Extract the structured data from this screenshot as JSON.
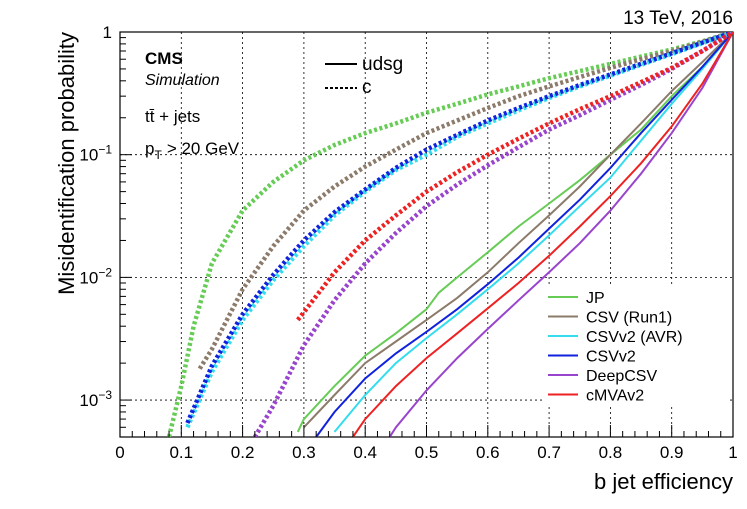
{
  "chart_data": {
    "type": "line",
    "energy_label": "13 TeV, 2016",
    "xlabel": "b jet efficiency",
    "ylabel": "Misidentification probability",
    "xlim": [
      0,
      1
    ],
    "ylim": [
      0.0005,
      1
    ],
    "yscale": "log",
    "grid": true,
    "x_ticks": [
      {
        "value": 0,
        "label": "0"
      },
      {
        "value": 0.1,
        "label": "0.1"
      },
      {
        "value": 0.2,
        "label": "0.2"
      },
      {
        "value": 0.3,
        "label": "0.3"
      },
      {
        "value": 0.4,
        "label": "0.4"
      },
      {
        "value": 0.5,
        "label": "0.5"
      },
      {
        "value": 0.6,
        "label": "0.6"
      },
      {
        "value": 0.7,
        "label": "0.7"
      },
      {
        "value": 0.8,
        "label": "0.8"
      },
      {
        "value": 0.9,
        "label": "0.9"
      },
      {
        "value": 1,
        "label": "1"
      }
    ],
    "y_ticks": [
      {
        "value": 0.001,
        "base": "10",
        "exp": "−3"
      },
      {
        "value": 0.01,
        "base": "10",
        "exp": "−2"
      },
      {
        "value": 0.1,
        "base": "10",
        "exp": "−1"
      },
      {
        "value": 1,
        "label": "1"
      }
    ],
    "annotations": {
      "experiment": "CMS",
      "status": "Simulation",
      "process": "tt̄ + jets",
      "cut_prefix": "p",
      "cut_sub": "T",
      "cut_suffix": "> 20 GeV"
    },
    "style_legend": [
      {
        "label": "udsg",
        "dash": "solid"
      },
      {
        "label": "c",
        "dash": "dotted"
      }
    ],
    "series": [
      {
        "name": "JP",
        "color": "#66cc55",
        "udsg": [
          [
            0.29,
            0.00055
          ],
          [
            0.3,
            0.0007
          ],
          [
            0.35,
            0.0013
          ],
          [
            0.4,
            0.0023
          ],
          [
            0.45,
            0.0035
          ],
          [
            0.5,
            0.0055
          ],
          [
            0.52,
            0.0075
          ],
          [
            0.55,
            0.01
          ],
          [
            0.6,
            0.016
          ],
          [
            0.65,
            0.026
          ],
          [
            0.7,
            0.04
          ],
          [
            0.75,
            0.062
          ],
          [
            0.8,
            0.1
          ],
          [
            0.85,
            0.16
          ],
          [
            0.9,
            0.3
          ],
          [
            0.95,
            0.52
          ],
          [
            1.0,
            1.0
          ]
        ],
        "c": [
          [
            0.08,
            0.0005
          ],
          [
            0.1,
            0.0013
          ],
          [
            0.12,
            0.004
          ],
          [
            0.15,
            0.013
          ],
          [
            0.2,
            0.035
          ],
          [
            0.25,
            0.06
          ],
          [
            0.3,
            0.09
          ],
          [
            0.35,
            0.12
          ],
          [
            0.4,
            0.15
          ],
          [
            0.45,
            0.18
          ],
          [
            0.5,
            0.22
          ],
          [
            0.55,
            0.26
          ],
          [
            0.6,
            0.31
          ],
          [
            0.65,
            0.36
          ],
          [
            0.7,
            0.42
          ],
          [
            0.75,
            0.48
          ],
          [
            0.8,
            0.55
          ],
          [
            0.85,
            0.63
          ],
          [
            0.9,
            0.72
          ],
          [
            0.95,
            0.84
          ],
          [
            1.0,
            1.0
          ]
        ]
      },
      {
        "name": "CSV (Run1)",
        "color": "#8c7b6b",
        "udsg": [
          [
            0.3,
            0.0006
          ],
          [
            0.35,
            0.0011
          ],
          [
            0.4,
            0.002
          ],
          [
            0.45,
            0.003
          ],
          [
            0.5,
            0.0045
          ],
          [
            0.55,
            0.0068
          ],
          [
            0.6,
            0.011
          ],
          [
            0.65,
            0.019
          ],
          [
            0.7,
            0.032
          ],
          [
            0.75,
            0.055
          ],
          [
            0.8,
            0.1
          ],
          [
            0.85,
            0.18
          ],
          [
            0.9,
            0.33
          ],
          [
            0.95,
            0.57
          ],
          [
            1.0,
            1.0
          ]
        ],
        "c": [
          [
            0.13,
            0.0018
          ],
          [
            0.15,
            0.0026
          ],
          [
            0.2,
            0.008
          ],
          [
            0.25,
            0.018
          ],
          [
            0.3,
            0.035
          ],
          [
            0.35,
            0.055
          ],
          [
            0.4,
            0.08
          ],
          [
            0.45,
            0.11
          ],
          [
            0.5,
            0.15
          ],
          [
            0.55,
            0.19
          ],
          [
            0.6,
            0.24
          ],
          [
            0.65,
            0.3
          ],
          [
            0.7,
            0.36
          ],
          [
            0.75,
            0.43
          ],
          [
            0.8,
            0.51
          ],
          [
            0.85,
            0.6
          ],
          [
            0.9,
            0.7
          ],
          [
            0.95,
            0.83
          ],
          [
            1.0,
            1.0
          ]
        ]
      },
      {
        "name": "CSVv2 (AVR)",
        "color": "#33ddee",
        "udsg": [
          [
            0.35,
            0.00055
          ],
          [
            0.4,
            0.0011
          ],
          [
            0.45,
            0.002
          ],
          [
            0.5,
            0.0032
          ],
          [
            0.55,
            0.005
          ],
          [
            0.6,
            0.008
          ],
          [
            0.65,
            0.013
          ],
          [
            0.7,
            0.022
          ],
          [
            0.75,
            0.038
          ],
          [
            0.8,
            0.065
          ],
          [
            0.85,
            0.13
          ],
          [
            0.9,
            0.26
          ],
          [
            0.95,
            0.5
          ],
          [
            1.0,
            1.0
          ]
        ],
        "c": [
          [
            0.11,
            0.0006
          ],
          [
            0.15,
            0.0017
          ],
          [
            0.2,
            0.0045
          ],
          [
            0.25,
            0.0095
          ],
          [
            0.3,
            0.018
          ],
          [
            0.35,
            0.032
          ],
          [
            0.4,
            0.05
          ],
          [
            0.45,
            0.075
          ],
          [
            0.5,
            0.1
          ],
          [
            0.55,
            0.14
          ],
          [
            0.6,
            0.18
          ],
          [
            0.65,
            0.23
          ],
          [
            0.7,
            0.29
          ],
          [
            0.75,
            0.36
          ],
          [
            0.8,
            0.44
          ],
          [
            0.85,
            0.54
          ],
          [
            0.9,
            0.66
          ],
          [
            0.95,
            0.81
          ],
          [
            1.0,
            1.0
          ]
        ]
      },
      {
        "name": "CSVv2",
        "color": "#1122dd",
        "udsg": [
          [
            0.32,
            0.0005
          ],
          [
            0.35,
            0.0008
          ],
          [
            0.4,
            0.0015
          ],
          [
            0.45,
            0.0024
          ],
          [
            0.5,
            0.0036
          ],
          [
            0.55,
            0.0055
          ],
          [
            0.6,
            0.0088
          ],
          [
            0.65,
            0.0145
          ],
          [
            0.7,
            0.025
          ],
          [
            0.75,
            0.043
          ],
          [
            0.8,
            0.078
          ],
          [
            0.85,
            0.15
          ],
          [
            0.9,
            0.28
          ],
          [
            0.95,
            0.52
          ],
          [
            1.0,
            1.0
          ]
        ],
        "c": [
          [
            0.11,
            0.00065
          ],
          [
            0.15,
            0.0019
          ],
          [
            0.2,
            0.005
          ],
          [
            0.25,
            0.0105
          ],
          [
            0.3,
            0.02
          ],
          [
            0.35,
            0.034
          ],
          [
            0.4,
            0.052
          ],
          [
            0.45,
            0.078
          ],
          [
            0.5,
            0.11
          ],
          [
            0.55,
            0.145
          ],
          [
            0.6,
            0.19
          ],
          [
            0.65,
            0.24
          ],
          [
            0.7,
            0.3
          ],
          [
            0.75,
            0.37
          ],
          [
            0.8,
            0.45
          ],
          [
            0.85,
            0.55
          ],
          [
            0.9,
            0.67
          ],
          [
            0.95,
            0.82
          ],
          [
            1.0,
            1.0
          ]
        ]
      },
      {
        "name": "DeepCSV",
        "color": "#9944cc",
        "udsg": [
          [
            0.44,
            0.0005
          ],
          [
            0.45,
            0.0006
          ],
          [
            0.5,
            0.0012
          ],
          [
            0.55,
            0.0022
          ],
          [
            0.6,
            0.0038
          ],
          [
            0.65,
            0.0065
          ],
          [
            0.7,
            0.011
          ],
          [
            0.75,
            0.019
          ],
          [
            0.8,
            0.035
          ],
          [
            0.85,
            0.07
          ],
          [
            0.9,
            0.15
          ],
          [
            0.95,
            0.35
          ],
          [
            1.0,
            1.0
          ]
        ],
        "c": [
          [
            0.22,
            0.0005
          ],
          [
            0.25,
            0.0009
          ],
          [
            0.3,
            0.0028
          ],
          [
            0.35,
            0.0065
          ],
          [
            0.4,
            0.013
          ],
          [
            0.45,
            0.023
          ],
          [
            0.5,
            0.038
          ],
          [
            0.55,
            0.057
          ],
          [
            0.6,
            0.082
          ],
          [
            0.65,
            0.115
          ],
          [
            0.7,
            0.16
          ],
          [
            0.75,
            0.21
          ],
          [
            0.8,
            0.28
          ],
          [
            0.85,
            0.37
          ],
          [
            0.9,
            0.5
          ],
          [
            0.95,
            0.7
          ],
          [
            1.0,
            1.0
          ]
        ]
      },
      {
        "name": "cMVAv2",
        "color": "#ee2222",
        "udsg": [
          [
            0.38,
            0.0005
          ],
          [
            0.4,
            0.0007
          ],
          [
            0.45,
            0.0013
          ],
          [
            0.5,
            0.0022
          ],
          [
            0.55,
            0.0035
          ],
          [
            0.6,
            0.0056
          ],
          [
            0.65,
            0.009
          ],
          [
            0.7,
            0.015
          ],
          [
            0.75,
            0.026
          ],
          [
            0.8,
            0.046
          ],
          [
            0.85,
            0.085
          ],
          [
            0.9,
            0.17
          ],
          [
            0.95,
            0.38
          ],
          [
            1.0,
            1.0
          ]
        ],
        "c": [
          [
            0.29,
            0.0045
          ],
          [
            0.3,
            0.0052
          ],
          [
            0.35,
            0.011
          ],
          [
            0.4,
            0.02
          ],
          [
            0.45,
            0.032
          ],
          [
            0.5,
            0.05
          ],
          [
            0.55,
            0.072
          ],
          [
            0.6,
            0.1
          ],
          [
            0.65,
            0.135
          ],
          [
            0.7,
            0.18
          ],
          [
            0.75,
            0.235
          ],
          [
            0.8,
            0.3
          ],
          [
            0.85,
            0.39
          ],
          [
            0.9,
            0.51
          ],
          [
            0.95,
            0.7
          ],
          [
            1.0,
            1.0
          ]
        ]
      }
    ]
  }
}
